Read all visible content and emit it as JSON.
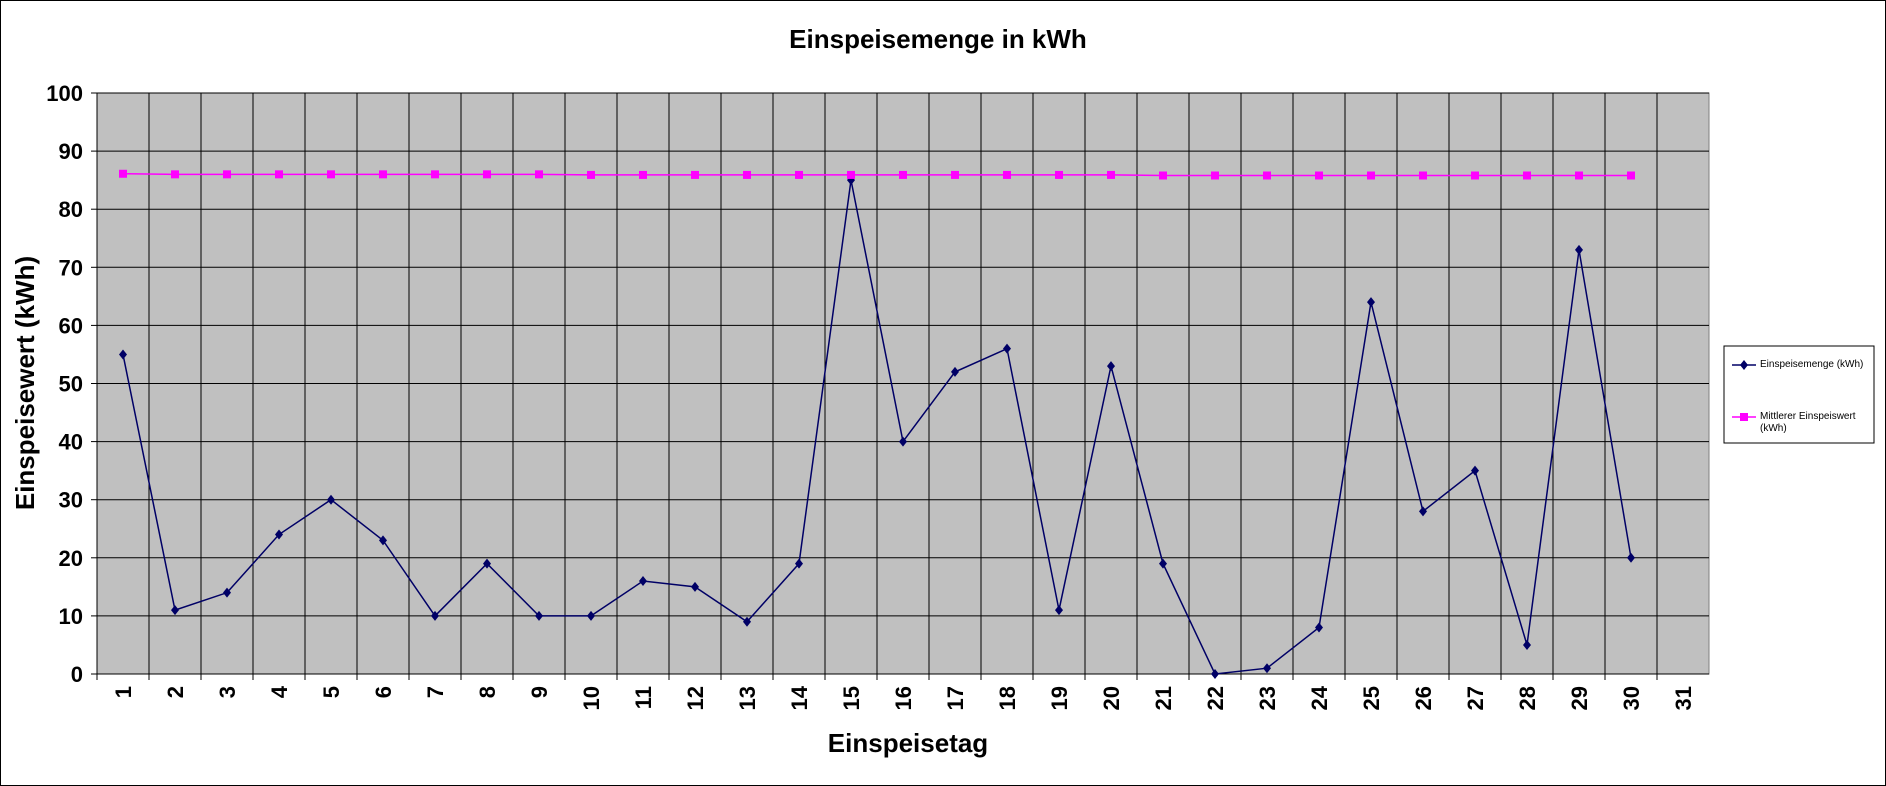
{
  "chart_data": {
    "type": "line",
    "title": "Einspeisemenge in kWh",
    "xlabel": "Einspeisetag",
    "ylabel": "Einspeisewert  (kWh)",
    "categories": [
      "1",
      "2",
      "3",
      "4",
      "5",
      "6",
      "7",
      "8",
      "9",
      "10",
      "11",
      "12",
      "13",
      "14",
      "15",
      "16",
      "17",
      "18",
      "19",
      "20",
      "21",
      "22",
      "23",
      "24",
      "25",
      "26",
      "27",
      "28",
      "29",
      "30",
      "31"
    ],
    "series": [
      {
        "name": "Einspeisemenge (kWh)",
        "color": "#000066",
        "marker": "diamond",
        "values": [
          55,
          11,
          14,
          24,
          30,
          23,
          10,
          19,
          10,
          10,
          16,
          15,
          9,
          19,
          85,
          40,
          52,
          56,
          11,
          53,
          19,
          0,
          1,
          8,
          64,
          28,
          35,
          5,
          73,
          20,
          null
        ]
      },
      {
        "name": "Mittlerer Einspeiswert (kWh)",
        "color": "#ff00ff",
        "marker": "square",
        "values": [
          86.1,
          86,
          86,
          86,
          86,
          86,
          86,
          86,
          86,
          85.9,
          85.9,
          85.9,
          85.9,
          85.9,
          85.9,
          85.9,
          85.9,
          85.9,
          85.9,
          85.9,
          85.8,
          85.8,
          85.8,
          85.8,
          85.8,
          85.8,
          85.8,
          85.8,
          85.8,
          85.8,
          null
        ]
      }
    ],
    "ylim": [
      0,
      100
    ],
    "yticks": [
      0,
      10,
      20,
      30,
      40,
      50,
      60,
      70,
      80,
      90,
      100
    ],
    "grid": true,
    "legend": "right"
  }
}
